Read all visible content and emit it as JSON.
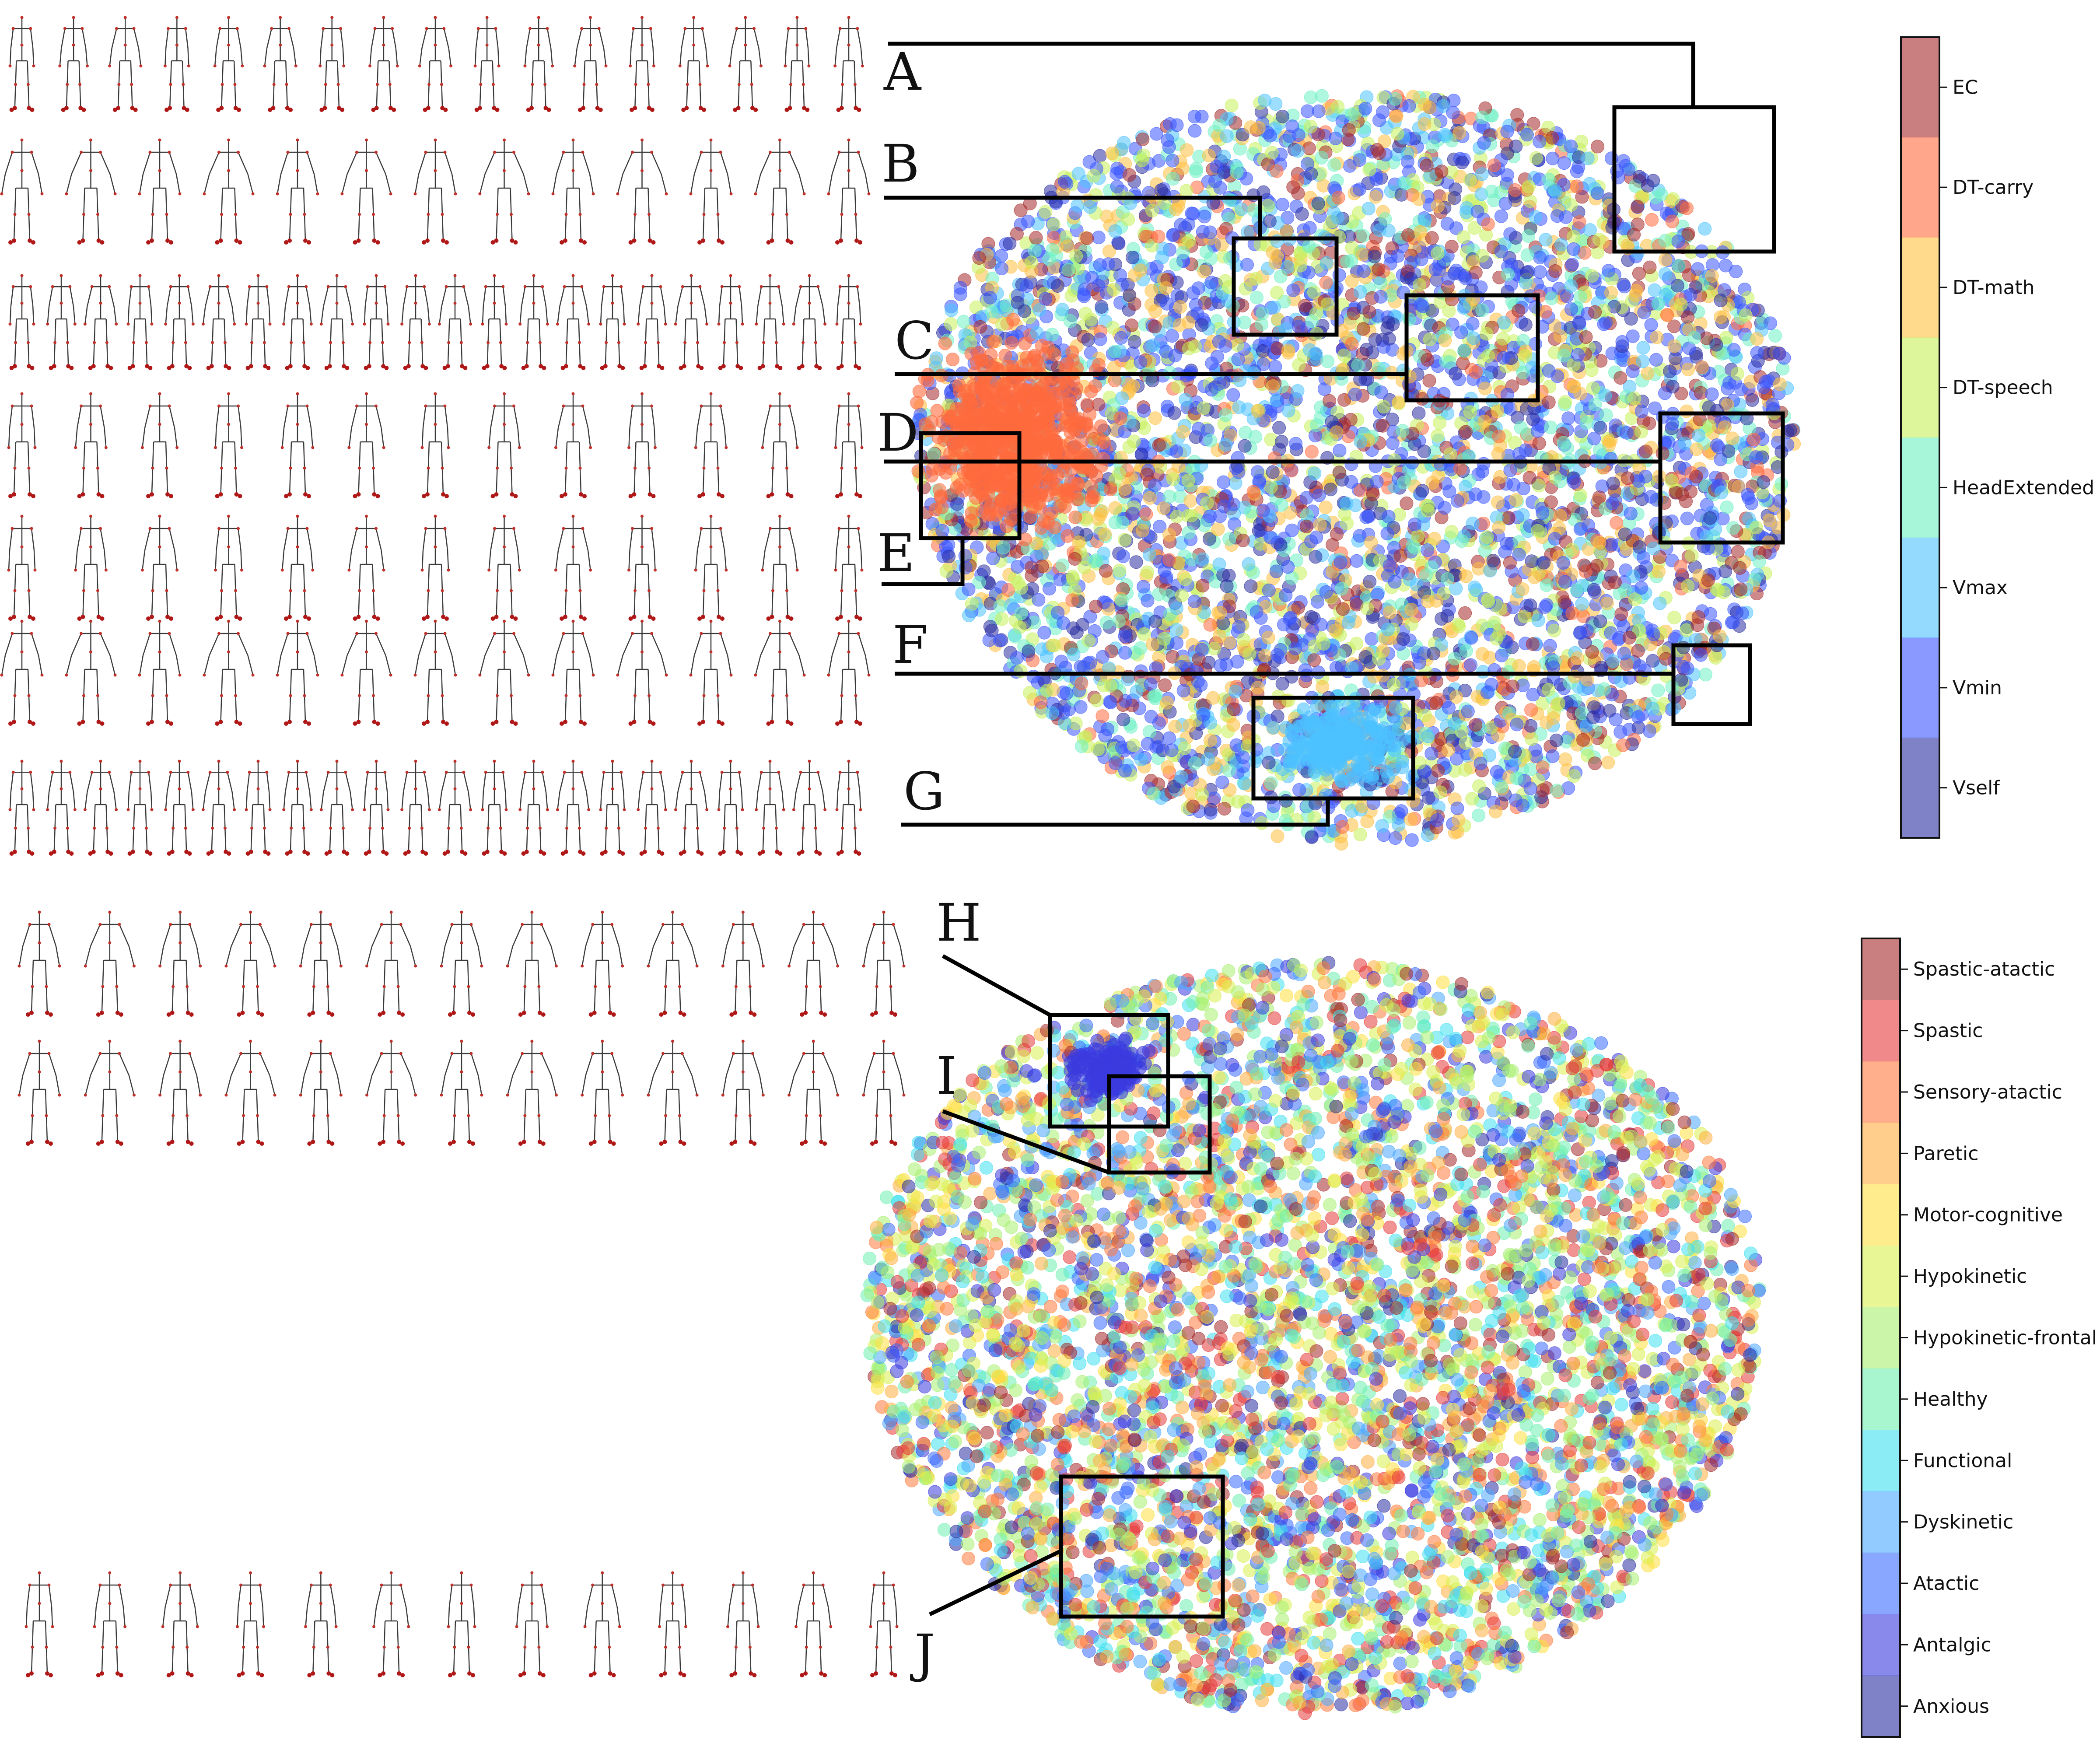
{
  "figure": {
    "panels": [
      {
        "id": "top",
        "callouts": [
          "A",
          "B",
          "C",
          "D",
          "E",
          "F",
          "G"
        ],
        "colorbar": {
          "labels": [
            "EC",
            "DT-carry",
            "DT-math",
            "DT-speech",
            "HeadExtended",
            "Vmax",
            "Vmin",
            "Vself"
          ],
          "colors": [
            "#a52a2a",
            "#ff6a3d",
            "#ffc040",
            "#c7f05a",
            "#6ef0c2",
            "#4cc2ff",
            "#3a55ff",
            "#2a2ea0"
          ]
        },
        "skeleton_rows": [
          {
            "callout": "A",
            "count": 17
          },
          {
            "callout": "B",
            "count": 13
          },
          {
            "callout": "C",
            "count": 22
          },
          {
            "callout": "D",
            "count": 13
          },
          {
            "callout": "E",
            "count": 13
          },
          {
            "callout": "F",
            "count": 13
          },
          {
            "callout": "G",
            "count": 22
          }
        ]
      },
      {
        "id": "bottom",
        "callouts": [
          "H",
          "I",
          "J"
        ],
        "colorbar": {
          "labels": [
            "Spastic-atactic",
            "Spastic",
            "Sensory-atactic",
            "Paretic",
            "Motor-cognitive",
            "Hypokinetic",
            "Hypokinetic-frontal",
            "Healthy",
            "Functional",
            "Dyskinetic",
            "Atactic",
            "Antalgic",
            "Anxious"
          ],
          "colors": [
            "#a52a2a",
            "#e63b3b",
            "#ff7a3d",
            "#ffae40",
            "#ffe040",
            "#d8f050",
            "#a8f070",
            "#6ef0b0",
            "#40e0f0",
            "#4aa8ff",
            "#3a6cff",
            "#3a3ae0",
            "#2a2ea0"
          ]
        },
        "skeleton_rows": [
          {
            "callout": "H",
            "count": 13
          },
          {
            "callout": "I",
            "count": 13
          },
          {
            "callout": "J",
            "count": 13
          }
        ]
      }
    ]
  },
  "chart_data": [
    {
      "type": "scatter",
      "panel": "top",
      "title": "",
      "xlabel": "",
      "ylabel": "",
      "legend": "colorbar right",
      "categories": [
        "EC",
        "DT-carry",
        "DT-math",
        "DT-speech",
        "HeadExtended",
        "Vmax",
        "Vmin",
        "Vself"
      ],
      "highlighted_regions": [
        "A",
        "B",
        "C",
        "D",
        "E",
        "F",
        "G"
      ]
    },
    {
      "type": "scatter",
      "panel": "bottom",
      "title": "",
      "xlabel": "",
      "ylabel": "",
      "legend": "colorbar right",
      "categories": [
        "Spastic-atactic",
        "Spastic",
        "Sensory-atactic",
        "Paretic",
        "Motor-cognitive",
        "Hypokinetic",
        "Hypokinetic-frontal",
        "Healthy",
        "Functional",
        "Dyskinetic",
        "Atactic",
        "Antalgic",
        "Anxious"
      ],
      "highlighted_regions": [
        "H",
        "I",
        "J"
      ]
    }
  ]
}
